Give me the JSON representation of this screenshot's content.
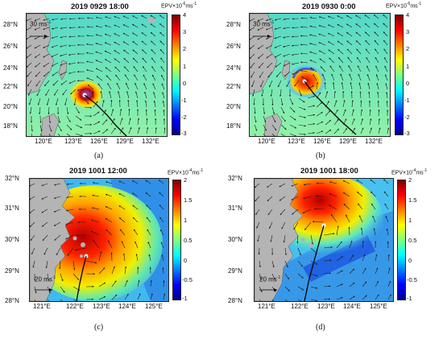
{
  "panels": [
    {
      "id": "a",
      "title": "2019 0929 18:00",
      "caption": "(a)",
      "lat_labels": [
        "28°N",
        "26°N",
        "24°N",
        "22°N",
        "20°N",
        "18°N"
      ],
      "lon_labels": [
        "120°E",
        "123°E",
        "126°E",
        "129°E",
        "132°E"
      ],
      "ref_arrow": "30 ms",
      "ref_arrow_sup": "-1",
      "cbar_title": "EPV×10",
      "cbar_title_exp": "-6",
      "cbar_title_unit": "ms",
      "cbar_title_unit_exp": "-1",
      "cbar_ticks": [
        "4",
        "3",
        "2",
        "1",
        "0",
        "-1",
        "-2",
        "-3"
      ]
    },
    {
      "id": "b",
      "title": "2019 0930 0:00",
      "caption": "(b)",
      "lat_labels": [
        "28°N",
        "26°N",
        "24°N",
        "22°N",
        "20°N",
        "18°N"
      ],
      "lon_labels": [
        "120°E",
        "123°E",
        "126°E",
        "129°E",
        "132°E"
      ],
      "ref_arrow": "30 ms",
      "ref_arrow_sup": "-1",
      "cbar_title": "EPV×10",
      "cbar_title_exp": "-6",
      "cbar_title_unit": "ms",
      "cbar_title_unit_exp": "-1",
      "cbar_ticks": [
        "4",
        "3",
        "2",
        "1",
        "0",
        "-1",
        "-2",
        "-3"
      ]
    },
    {
      "id": "c",
      "title": "2019 1001 12:00",
      "caption": "(c)",
      "lat_labels": [
        "32°N",
        "31°N",
        "30°N",
        "29°N",
        "28°N"
      ],
      "lon_labels": [
        "121°E",
        "122°E",
        "123°E",
        "124°E",
        "125°E"
      ],
      "ref_arrow": "20 ms",
      "ref_arrow_sup": "-1",
      "cbar_title": "EPV×10",
      "cbar_title_exp": "-4",
      "cbar_title_unit": "ms",
      "cbar_title_unit_exp": "-1",
      "cbar_ticks": [
        "2",
        "1.5",
        "1",
        "0.5",
        "0",
        "-0.5",
        "-1"
      ]
    },
    {
      "id": "d",
      "title": "2019 1001 18:00",
      "caption": "(d)",
      "lat_labels": [
        "32°N",
        "31°N",
        "30°N",
        "29°N",
        "28°N"
      ],
      "lon_labels": [
        "121°E",
        "122°E",
        "123°E",
        "124°E",
        "125°E"
      ],
      "ref_arrow": "20 ms",
      "ref_arrow_sup": "-1",
      "cbar_title": "EPV×10",
      "cbar_title_exp": "-4",
      "cbar_title_unit": "ms",
      "cbar_title_unit_exp": "-1",
      "cbar_ticks": [
        "2",
        "1.5",
        "1",
        "0.5",
        "0",
        "-0.5",
        "-1"
      ]
    }
  ],
  "colors": {
    "land": "#b4b4b4",
    "bg_top": "#5ee0c8",
    "bg_bottom": "#8cf0b0",
    "track": "#000000"
  }
}
